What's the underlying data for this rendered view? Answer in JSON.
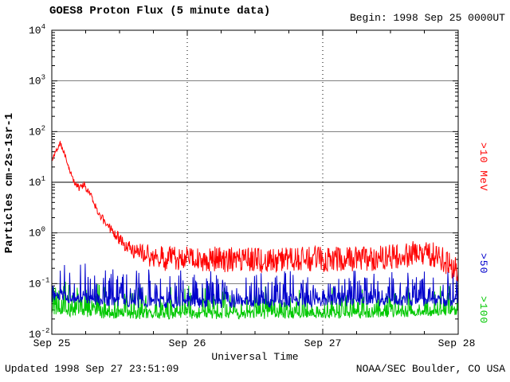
{
  "header": {
    "title": "GOES8 Proton Flux (5 minute data)",
    "begin": "Begin: 1998 Sep 25 0000UT"
  },
  "footer": {
    "updated": "Updated 1998 Sep 27 23:51:09",
    "source": "NOAA/SEC Boulder, CO USA"
  },
  "chart_data": {
    "type": "line",
    "title": "GOES8 Proton Flux (5 minute data)",
    "xlabel": "Universal Time",
    "ylabel": "Particles cm-2s-1sr-1",
    "x_ticks": [
      "Sep 25",
      "Sep 26",
      "Sep 27",
      "Sep 28"
    ],
    "x_range_days": [
      0,
      3
    ],
    "y_log_range": [
      -2,
      4
    ],
    "y_tick_exponents": [
      4,
      3,
      2,
      1,
      0,
      -1,
      -2
    ],
    "grid": {
      "horizontal": "solid-every-decade",
      "vertical": "dashed-every-day"
    },
    "legend_position": "right-rotated",
    "sample_interval_minutes": 5,
    "series": [
      {
        "id": "gt10mev",
        "name": ">10 MeV",
        "color": "#ff0000",
        "seed": 11,
        "sharp": 1,
        "anchors": [
          [
            0,
            28
          ],
          [
            0.03,
            40
          ],
          [
            0.06,
            60
          ],
          [
            0.08,
            45
          ],
          [
            0.12,
            22
          ],
          [
            0.16,
            11
          ],
          [
            0.2,
            7.5
          ],
          [
            0.24,
            9
          ],
          [
            0.28,
            6
          ],
          [
            0.33,
            3
          ],
          [
            0.38,
            1.8
          ],
          [
            0.44,
            1.1
          ],
          [
            0.5,
            0.75
          ],
          [
            0.56,
            0.5
          ],
          [
            0.62,
            0.42
          ],
          [
            0.7,
            0.35
          ],
          [
            0.85,
            0.3
          ],
          [
            1.1,
            0.3
          ],
          [
            1.5,
            0.28
          ],
          [
            1.9,
            0.3
          ],
          [
            2.3,
            0.3
          ],
          [
            2.55,
            0.33
          ],
          [
            2.7,
            0.4
          ],
          [
            2.8,
            0.38
          ],
          [
            2.9,
            0.28
          ],
          [
            3.0,
            0.17
          ]
        ],
        "noise_up": [
          [
            0,
            0.05
          ],
          [
            0.4,
            0.08
          ],
          [
            0.55,
            0.16
          ],
          [
            0.75,
            0.26
          ],
          [
            3,
            0.26
          ]
        ],
        "noise_down": [
          [
            0,
            0.05
          ],
          [
            0.4,
            0.08
          ],
          [
            0.55,
            0.16
          ],
          [
            0.75,
            0.24
          ],
          [
            3,
            0.24
          ]
        ]
      },
      {
        "id": "gt50",
        "name": ">50",
        "color": "#0000cc",
        "seed": 7,
        "sharp": 2.5,
        "anchors": [
          [
            0,
            0.065
          ],
          [
            0.2,
            0.06
          ],
          [
            0.5,
            0.05
          ],
          [
            1,
            0.048
          ],
          [
            2,
            0.05
          ],
          [
            3,
            0.05
          ]
        ],
        "noise_up": [
          [
            0,
            0.75
          ],
          [
            0.4,
            0.6
          ],
          [
            3,
            0.55
          ]
        ],
        "noise_down": [
          [
            0,
            0.18
          ],
          [
            3,
            0.15
          ]
        ]
      },
      {
        "id": "gt100",
        "name": ">100",
        "color": "#00c800",
        "seed": 5,
        "sharp": 2.5,
        "anchors": [
          [
            0,
            0.032
          ],
          [
            0.5,
            0.027
          ],
          [
            2,
            0.027
          ],
          [
            3,
            0.03
          ]
        ],
        "noise_up": [
          [
            0,
            0.55
          ],
          [
            3,
            0.5
          ]
        ],
        "noise_down": [
          [
            0,
            0.14
          ],
          [
            3,
            0.12
          ]
        ]
      }
    ]
  }
}
